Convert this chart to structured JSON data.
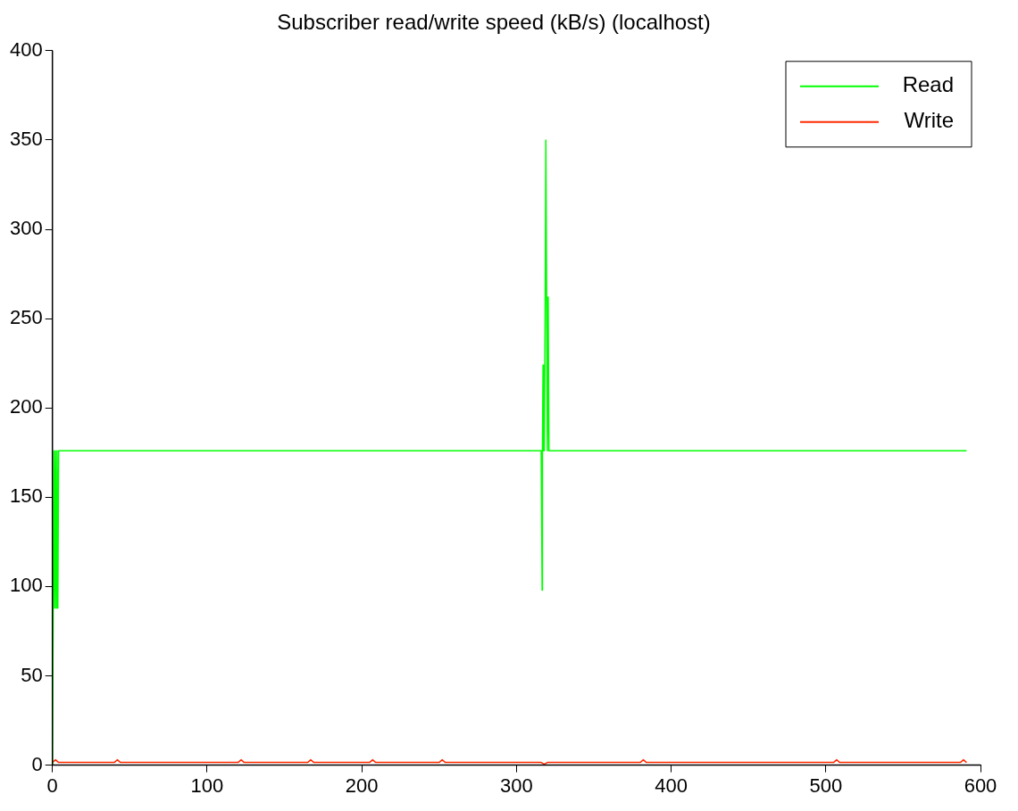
{
  "chart_data": {
    "type": "line",
    "title": "Subscriber read/write speed (kB/s) (localhost)",
    "xlim": [
      0,
      600
    ],
    "xticks": [
      0,
      100,
      200,
      300,
      400,
      500,
      600
    ],
    "ylim": [
      0,
      400
    ],
    "yticks": [
      0,
      50,
      100,
      150,
      200,
      250,
      300,
      350,
      400
    ],
    "grid": false,
    "legend": "top right",
    "marker": "none",
    "line_style": "solid",
    "series": [
      {
        "name": "Read",
        "color": "#00ff00",
        "x": [
          0,
          1,
          1.5,
          2,
          2.5,
          3,
          3.5,
          4,
          315.5,
          316,
          316.3,
          316.6,
          316.8,
          317.2,
          317.5,
          318,
          318.6,
          319,
          319.5,
          320,
          320.5,
          321,
          591
        ],
        "values": [
          0,
          176,
          88,
          176,
          88,
          176,
          88,
          176,
          176,
          176,
          137,
          98,
          176,
          224,
          176,
          176,
          262,
          350,
          262,
          176,
          262,
          176,
          176
        ]
      },
      {
        "name": "Write",
        "color": "#ff2a00",
        "x": [
          0,
          2,
          4,
          40,
          42,
          44,
          120,
          122,
          124,
          165,
          167,
          169,
          205,
          207,
          209,
          250,
          252,
          254,
          316,
          318,
          320,
          380,
          382,
          384,
          505,
          507,
          509,
          587,
          589,
          591
        ],
        "values": [
          1.5,
          3,
          1.5,
          1.5,
          3,
          1.5,
          1.5,
          3,
          1.5,
          1.5,
          3,
          1.5,
          1.5,
          3,
          1.5,
          1.5,
          3,
          1.5,
          1.5,
          0.5,
          1.5,
          1.5,
          3,
          1.5,
          1.5,
          3,
          1.5,
          1.5,
          3,
          1.5
        ]
      }
    ]
  }
}
